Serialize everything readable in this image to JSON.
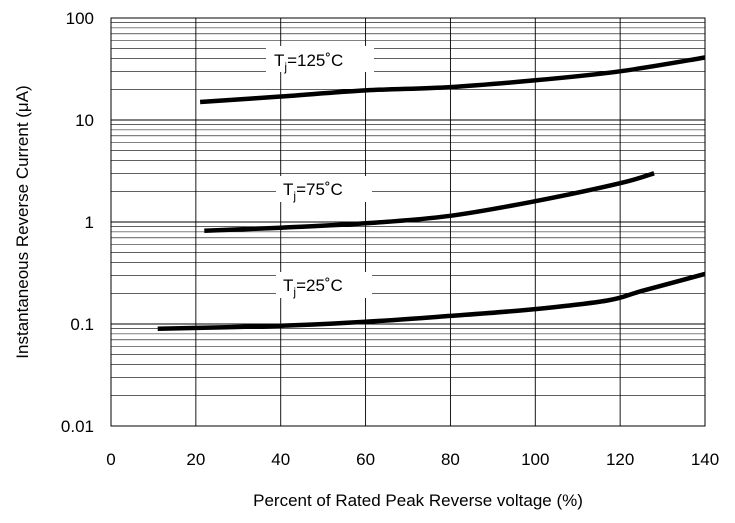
{
  "chart_data": {
    "type": "line",
    "title": "",
    "xlabel": "Percent of Rated Peak Reverse voltage (%)",
    "ylabel": "Instantaneous Reverse Current (μA)",
    "xlim": [
      0,
      140
    ],
    "ylim": [
      0.01,
      100
    ],
    "yscale": "log",
    "grid": true,
    "x_ticks": [
      "0",
      "20",
      "40",
      "60",
      "80",
      "100",
      "120",
      "140"
    ],
    "y_ticks": [
      "0.01",
      "0.1",
      "1",
      "10",
      "100"
    ],
    "series": [
      {
        "name_main": "T",
        "name_sub": "j",
        "name_rest": "=125˚C",
        "x": [
          21,
          40,
          60,
          80,
          100,
          120,
          140
        ],
        "y": [
          15,
          17,
          19.5,
          21,
          24.5,
          30,
          41
        ]
      },
      {
        "name_main": "T",
        "name_sub": "j",
        "name_rest": "=75˚C",
        "x": [
          22,
          40,
          60,
          80,
          100,
          120,
          128
        ],
        "y": [
          0.82,
          0.88,
          0.97,
          1.15,
          1.6,
          2.4,
          3.0
        ]
      },
      {
        "name_main": "T",
        "name_sub": "j",
        "name_rest": "=25˚C",
        "x": [
          11,
          40,
          60,
          80,
          100,
          117,
          125,
          140
        ],
        "y": [
          0.09,
          0.096,
          0.105,
          0.12,
          0.14,
          0.17,
          0.21,
          0.31
        ]
      }
    ]
  }
}
